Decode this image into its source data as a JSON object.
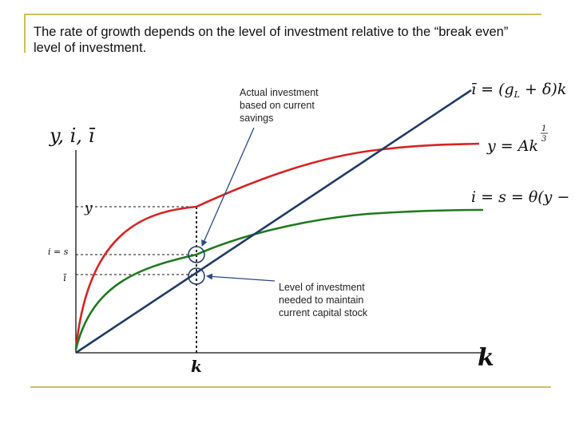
{
  "title": {
    "line1": "The rate of growth depends on the level of investment relative to the “break even”",
    "line2": "level of investment."
  },
  "axes": {
    "y_label": "y, i, ī",
    "x_label": "k",
    "k_marker": "k",
    "y_tick": "y",
    "is_tick": "i = s",
    "ibar_tick": "ī"
  },
  "curves": {
    "breakeven_label": "ī = (gₗ + δ)k",
    "breakeven_label_parts": {
      "lhs": "ī = (g",
      "sub": "L",
      "rhs": " + δ)k"
    },
    "production_label": {
      "base": "y = Ak",
      "exponent_num": "1",
      "exponent_den": "3"
    },
    "investment_label": "i = s = θ(y − t)"
  },
  "annotations": {
    "actual_investment": [
      "Actual investment",
      "based on current",
      "savings"
    ],
    "breakeven_investment": [
      "Level of investment",
      "needed to maintain",
      "current capital stock"
    ]
  },
  "colors": {
    "frame": "#cdbf58",
    "production_curve": "#d42424",
    "investment_curve": "#1e7a1e",
    "breakeven_line": "#1f3a66",
    "arrows": "#2a4a80"
  }
}
